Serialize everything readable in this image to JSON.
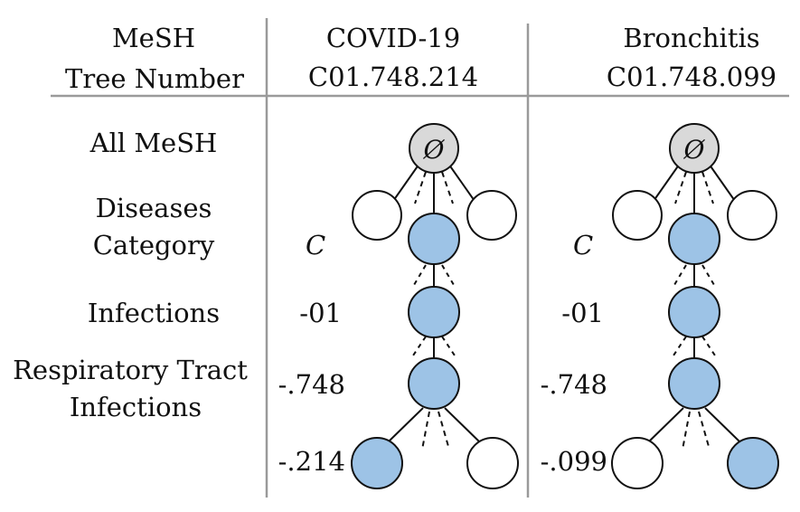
{
  "header": {
    "col_label": "MeSH",
    "col_a": "COVID-19",
    "col_b": "Bronchitis"
  },
  "tree_row": {
    "label": "Tree Number",
    "a": "C01.748.214",
    "b": "C01.748.099"
  },
  "levels": [
    {
      "name_lines": [
        "All MeSH"
      ],
      "code": ""
    },
    {
      "name_lines": [
        "Diseases",
        "Category"
      ],
      "code": "C"
    },
    {
      "name_lines": [
        "Infections"
      ],
      "code": "-01"
    },
    {
      "name_lines": [
        "Respiratory Tract",
        "Infections"
      ],
      "code": "-.748"
    }
  ],
  "leaf_codes": {
    "a": "-.214",
    "b": "-.099"
  },
  "root_symbol": "Ø",
  "colors": {
    "root_fill": "#d9d9d9",
    "highlight_fill": "#9dc3e6",
    "empty_fill": "#ffffff",
    "stroke": "#111111",
    "rule": "#9a9a9a"
  },
  "leaf_highlight": {
    "a": "left",
    "b": "right"
  }
}
